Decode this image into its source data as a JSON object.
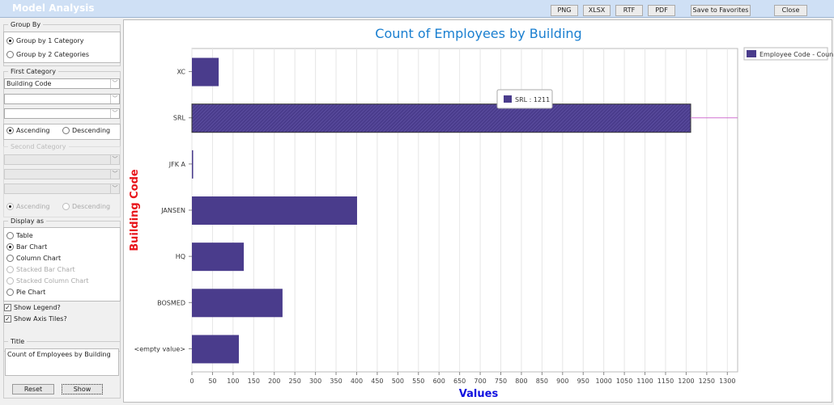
{
  "window": {
    "title": "Model Analysis",
    "buttons": {
      "png": "PNG",
      "xlsx": "XLSX",
      "rtf": "RTF",
      "pdf": "PDF",
      "save": "Save to Favorites",
      "close": "Close"
    }
  },
  "sidebar": {
    "group_by": {
      "label": "Group By",
      "options": [
        "Group by 1 Category",
        "Group by 2 Categories"
      ],
      "selected": 0
    },
    "first_category": {
      "label": "First Category",
      "select1": "Building Code",
      "select2": "",
      "select3": "",
      "asc": "Ascending",
      "desc": "Descending"
    },
    "second_category": {
      "label": "Second Category",
      "asc": "Ascending",
      "desc": "Descending"
    },
    "display_as": {
      "label": "Display as",
      "options": [
        "Table",
        "Bar Chart",
        "Column Chart",
        "Stacked Bar Chart",
        "Stacked Column Chart",
        "Pie Chart"
      ],
      "selected": 1
    },
    "show_legend": "Show Legend?",
    "show_axis_tiles": "Show Axis Tiles?",
    "title": {
      "label": "Title",
      "value": "Count of Employees by Building"
    },
    "reset": "Reset",
    "show": "Show"
  },
  "colors": {
    "bar": "#4a3c8c",
    "title": "#1a7fd0",
    "ylabel": "#e8151b",
    "xlabel": "#1010e0"
  },
  "chart_data": {
    "type": "bar",
    "orientation": "horizontal",
    "title": "Count of Employees by Building",
    "xlabel": "Values",
    "ylabel": "Building Code",
    "categories": [
      "XC",
      "SRL",
      "JFK A",
      "JANSEN",
      "HQ",
      "BOSMED",
      "<empty value>"
    ],
    "series": [
      {
        "name": "Employee Code - Count",
        "values": [
          65,
          1211,
          3,
          401,
          126,
          220,
          114
        ]
      }
    ],
    "xlim": [
      0,
      1325
    ],
    "xticks": [
      0,
      50,
      100,
      150,
      200,
      250,
      300,
      350,
      400,
      450,
      500,
      550,
      600,
      650,
      700,
      750,
      800,
      850,
      900,
      950,
      1000,
      1050,
      1100,
      1150,
      1200,
      1250,
      1300
    ],
    "grid": true,
    "legend": "top-right",
    "tooltip": "SRL : 1211"
  }
}
